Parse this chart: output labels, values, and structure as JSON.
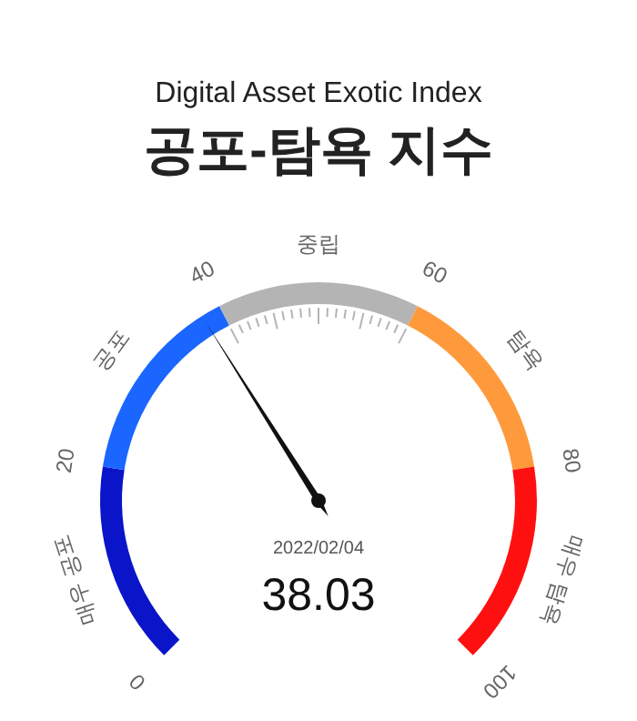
{
  "chart_data": {
    "type": "donut",
    "subtitle": "Digital Asset Exotic Index",
    "title": "공포-탐욕 지수",
    "categories": [
      "매우 공포",
      "공포",
      "중립",
      "탐욕",
      "매우 탐욕"
    ],
    "values": [
      20,
      20,
      20,
      20,
      20
    ],
    "colors": [
      "#0a14c8",
      "#1a66ff",
      "#b4b4b4",
      "#ff9a3c",
      "#ff1010"
    ],
    "needle": "공포",
    "annotations": [
      "0",
      "20",
      "40",
      "60",
      "80",
      "100",
      "2022/02/04",
      "38.03"
    ]
  }
}
